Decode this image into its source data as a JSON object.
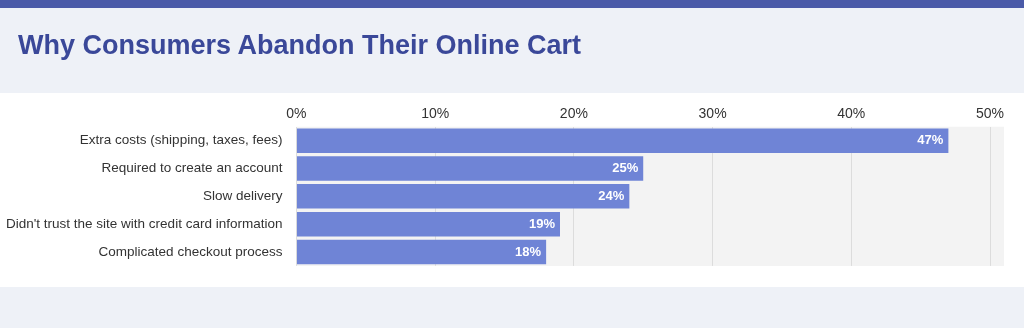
{
  "chart_data": {
    "type": "bar",
    "orientation": "horizontal",
    "title": "Why Consumers Abandon Their Online Cart",
    "categories": [
      "Extra costs (shipping, taxes, fees)",
      "Required to create an account",
      "Slow delivery",
      "Didn't trust the site with credit card information",
      "Complicated checkout process"
    ],
    "values": [
      47,
      25,
      24,
      19,
      18
    ],
    "value_labels": [
      "47%",
      "25%",
      "24%",
      "19%",
      "18%"
    ],
    "color": "#6f84d6",
    "xlim": [
      0,
      50
    ],
    "xticks": [
      {
        "value": 0,
        "label": "0%"
      },
      {
        "value": 10,
        "label": "10%"
      },
      {
        "value": 20,
        "label": "20%"
      },
      {
        "value": 30,
        "label": "30%"
      },
      {
        "value": 40,
        "label": "40%"
      },
      {
        "value": 50,
        "label": "50%"
      }
    ],
    "grid": "x"
  }
}
